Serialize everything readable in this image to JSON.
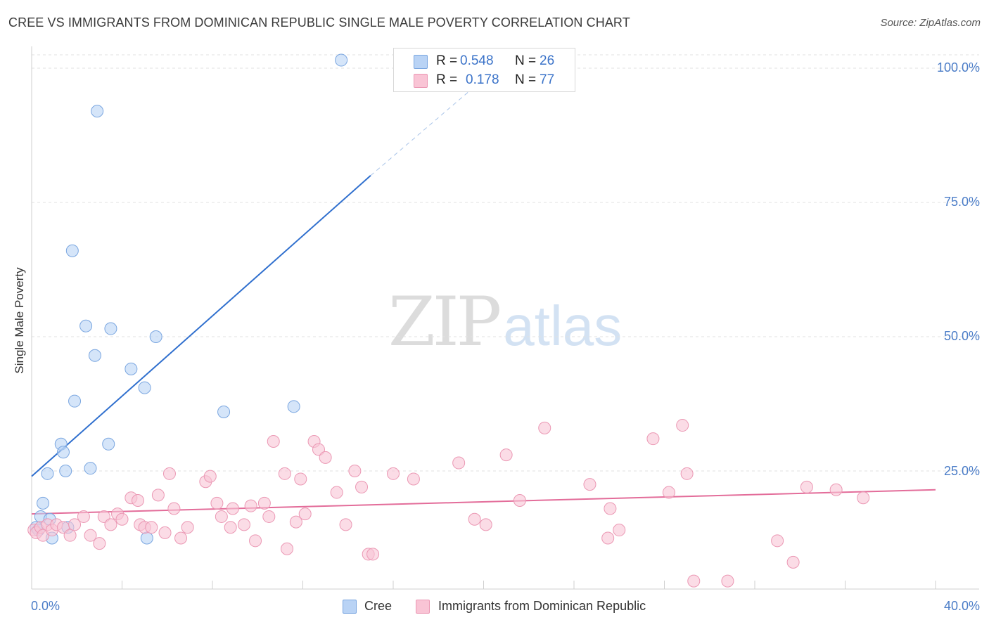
{
  "title": "CREE VS IMMIGRANTS FROM DOMINICAN REPUBLIC SINGLE MALE POVERTY CORRELATION CHART",
  "source": "Source: ZipAtlas.com",
  "watermark": {
    "part1": "ZIP",
    "part2": "atlas"
  },
  "legend": {
    "rows": [
      {
        "r_label": "R =",
        "r_value": "0.548",
        "n_label": "N =",
        "n_value": "26",
        "color": "#b9d3f5",
        "border": "#7aa6e0"
      },
      {
        "r_label": "R =",
        "r_value": "0.178",
        "n_label": "N =",
        "n_value": "77",
        "color": "#f9c4d5",
        "border": "#eb98b4"
      }
    ]
  },
  "bottom_legend": [
    {
      "label": "Cree",
      "color": "#b9d3f5",
      "border": "#7aa6e0"
    },
    {
      "label": "Immigrants from Dominican Republic",
      "color": "#f9c4d5",
      "border": "#eb98b4"
    }
  ],
  "chart_data": {
    "type": "scatter",
    "title": "CREE VS IMMIGRANTS FROM DOMINICAN REPUBLIC SINGLE MALE POVERTY CORRELATION CHART",
    "xlabel": "",
    "ylabel": "Single Male Poverty",
    "xlim": [
      0,
      40
    ],
    "ylim": [
      0,
      105
    ],
    "x_tick_labels": [
      "0.0%",
      "40.0%"
    ],
    "y_ticks": [
      25,
      50,
      75,
      100
    ],
    "y_tick_labels": [
      "25.0%",
      "50.0%",
      "75.0%",
      "100.0%"
    ],
    "grid": true,
    "series": [
      {
        "name": "Cree",
        "color": "#b9d3f5",
        "border": "#7aa6e0",
        "line_color": "#2f6fce",
        "trend": {
          "x0": 0.0,
          "y0": 24.0,
          "x1": 15.0,
          "y1": 80.0,
          "dash_x1": 20.0,
          "dash_y1": 98.0
        },
        "points": [
          [
            13.7,
            101.5
          ],
          [
            2.9,
            92.0
          ],
          [
            1.8,
            66.0
          ],
          [
            2.4,
            52.0
          ],
          [
            3.5,
            51.5
          ],
          [
            5.5,
            50.0
          ],
          [
            2.8,
            46.5
          ],
          [
            4.4,
            44.0
          ],
          [
            5.0,
            40.5
          ],
          [
            1.9,
            38.0
          ],
          [
            8.5,
            36.0
          ],
          [
            11.6,
            37.0
          ],
          [
            1.3,
            30.0
          ],
          [
            3.4,
            30.0
          ],
          [
            1.4,
            28.5
          ],
          [
            0.7,
            24.5
          ],
          [
            1.5,
            25.0
          ],
          [
            2.6,
            25.5
          ],
          [
            0.5,
            19.0
          ],
          [
            0.4,
            16.5
          ],
          [
            0.8,
            16.0
          ],
          [
            0.2,
            14.5
          ],
          [
            0.3,
            14.0
          ],
          [
            1.6,
            14.5
          ],
          [
            0.9,
            12.5
          ],
          [
            5.1,
            12.5
          ]
        ]
      },
      {
        "name": "Immigrants from Dominican Republic",
        "color": "#f9c4d5",
        "border": "#eb98b4",
        "line_color": "#e36d9a",
        "trend": {
          "x0": 0.0,
          "y0": 17.0,
          "x1": 40.0,
          "y1": 21.5
        },
        "points": [
          [
            0.1,
            14.0
          ],
          [
            0.2,
            13.5
          ],
          [
            0.4,
            14.5
          ],
          [
            0.5,
            13.0
          ],
          [
            0.7,
            15.0
          ],
          [
            0.9,
            14.0
          ],
          [
            1.1,
            15.0
          ],
          [
            1.4,
            14.5
          ],
          [
            1.7,
            13.0
          ],
          [
            1.9,
            15.0
          ],
          [
            2.3,
            16.5
          ],
          [
            2.6,
            13.0
          ],
          [
            3.0,
            11.5
          ],
          [
            3.2,
            16.5
          ],
          [
            3.5,
            15.0
          ],
          [
            3.8,
            17.0
          ],
          [
            4.0,
            16.0
          ],
          [
            4.4,
            20.0
          ],
          [
            4.7,
            19.5
          ],
          [
            4.8,
            15.0
          ],
          [
            5.0,
            14.5
          ],
          [
            5.3,
            14.5
          ],
          [
            5.6,
            20.5
          ],
          [
            5.9,
            13.5
          ],
          [
            6.1,
            24.5
          ],
          [
            6.3,
            18.0
          ],
          [
            6.6,
            12.5
          ],
          [
            6.9,
            14.5
          ],
          [
            7.7,
            23.0
          ],
          [
            7.9,
            24.0
          ],
          [
            8.2,
            19.0
          ],
          [
            8.4,
            16.5
          ],
          [
            8.8,
            14.5
          ],
          [
            8.9,
            18.0
          ],
          [
            9.4,
            15.0
          ],
          [
            9.7,
            18.5
          ],
          [
            9.9,
            12.0
          ],
          [
            10.3,
            19.0
          ],
          [
            10.5,
            16.5
          ],
          [
            10.7,
            30.5
          ],
          [
            11.2,
            24.5
          ],
          [
            11.3,
            10.5
          ],
          [
            11.7,
            15.5
          ],
          [
            11.9,
            23.5
          ],
          [
            12.1,
            17.0
          ],
          [
            12.5,
            30.5
          ],
          [
            12.7,
            29.0
          ],
          [
            13.0,
            27.5
          ],
          [
            13.5,
            21.0
          ],
          [
            13.9,
            15.0
          ],
          [
            14.3,
            25.0
          ],
          [
            14.6,
            22.0
          ],
          [
            14.9,
            9.5
          ],
          [
            15.1,
            9.5
          ],
          [
            16.0,
            24.5
          ],
          [
            16.9,
            23.5
          ],
          [
            18.9,
            26.5
          ],
          [
            19.6,
            16.0
          ],
          [
            20.1,
            15.0
          ],
          [
            21.0,
            28.0
          ],
          [
            21.6,
            19.5
          ],
          [
            22.7,
            33.0
          ],
          [
            24.7,
            22.5
          ],
          [
            25.6,
            18.0
          ],
          [
            25.5,
            12.5
          ],
          [
            26.0,
            14.0
          ],
          [
            27.5,
            31.0
          ],
          [
            28.2,
            21.0
          ],
          [
            28.8,
            33.5
          ],
          [
            29.0,
            24.5
          ],
          [
            29.3,
            4.5
          ],
          [
            30.8,
            4.5
          ],
          [
            33.0,
            12.0
          ],
          [
            33.7,
            8.0
          ],
          [
            34.3,
            22.0
          ],
          [
            35.6,
            21.5
          ],
          [
            36.8,
            20.0
          ]
        ]
      }
    ]
  }
}
